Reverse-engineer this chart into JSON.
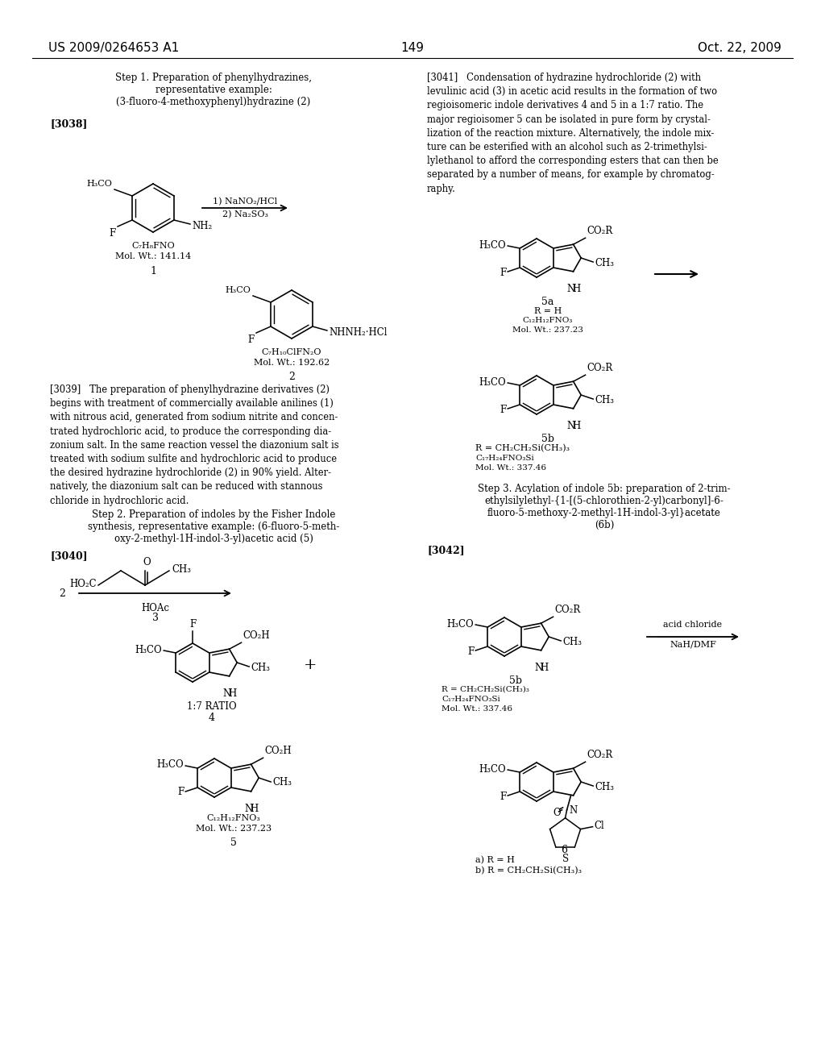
{
  "background_color": "#ffffff",
  "header_left": "US 2009/0264653 A1",
  "header_right": "Oct. 22, 2009",
  "page_number": "149"
}
